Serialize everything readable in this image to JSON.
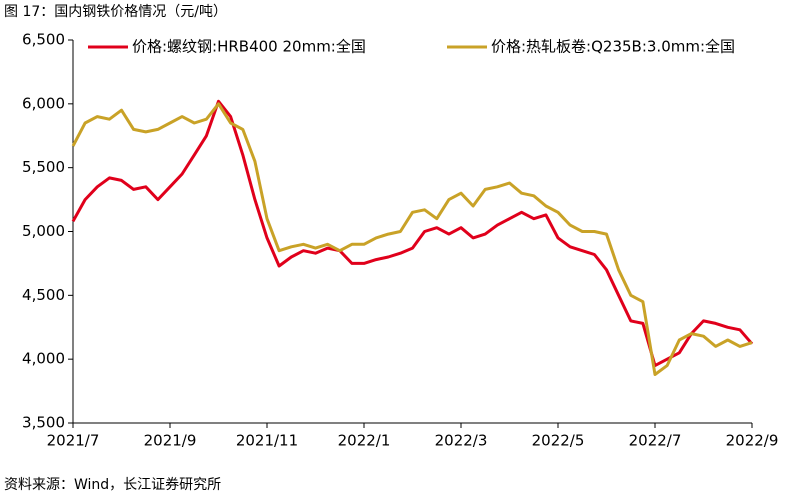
{
  "chart_data": {
    "type": "line",
    "title": "图 17：国内钢铁价格情况（元/吨）",
    "source": "资料来源：Wind，长江证券研究所",
    "categories": [
      "2021/7",
      null,
      null,
      null,
      null,
      null,
      null,
      null,
      "2021/9",
      null,
      null,
      null,
      null,
      null,
      null,
      null,
      "2021/11",
      null,
      null,
      null,
      null,
      null,
      null,
      null,
      "2022/1",
      null,
      null,
      null,
      null,
      null,
      null,
      null,
      "2022/3",
      null,
      null,
      null,
      null,
      null,
      null,
      null,
      "2022/5",
      null,
      null,
      null,
      null,
      null,
      null,
      null,
      "2022/7",
      null,
      null,
      null,
      null,
      null,
      null,
      null,
      "2022/9"
    ],
    "series": [
      {
        "name": "价格:螺纹钢:HRB400 20mm:全国",
        "color": "#e0001b",
        "values": [
          5080,
          5250,
          5350,
          5420,
          5400,
          5330,
          5350,
          5250,
          5350,
          5450,
          5600,
          5750,
          6020,
          5900,
          5600,
          5250,
          4950,
          4730,
          4800,
          4850,
          4830,
          4870,
          4850,
          4750,
          4750,
          4780,
          4800,
          4830,
          4870,
          5000,
          5030,
          4980,
          5030,
          4950,
          4980,
          5050,
          5100,
          5150,
          5100,
          5130,
          4950,
          4880,
          4850,
          4820,
          4700,
          4500,
          4300,
          4280,
          3950,
          4000,
          4050,
          4200,
          4300,
          4280,
          4250,
          4230,
          4120
        ]
      },
      {
        "name": "价格:热轧板卷:Q235B:3.0mm:全国",
        "color": "#c9a227",
        "values": [
          5670,
          5850,
          5900,
          5880,
          5950,
          5800,
          5780,
          5800,
          5850,
          5900,
          5850,
          5880,
          6000,
          5850,
          5800,
          5550,
          5100,
          4850,
          4880,
          4900,
          4870,
          4900,
          4850,
          4900,
          4900,
          4950,
          4980,
          5000,
          5150,
          5170,
          5100,
          5250,
          5300,
          5200,
          5330,
          5350,
          5380,
          5300,
          5280,
          5200,
          5150,
          5050,
          5000,
          5000,
          4980,
          4700,
          4500,
          4450,
          3880,
          3950,
          4150,
          4200,
          4180,
          4100,
          4150,
          4100,
          4130
        ]
      }
    ],
    "ylim": [
      3500,
      6500
    ],
    "yticks": [
      {
        "value": 3500,
        "label": "3,500"
      },
      {
        "value": 4000,
        "label": "4,000"
      },
      {
        "value": 4500,
        "label": "4,500"
      },
      {
        "value": 5000,
        "label": "5,000"
      },
      {
        "value": 5500,
        "label": "5,500"
      },
      {
        "value": 6000,
        "label": "6,000"
      },
      {
        "value": 6500,
        "label": "6,500"
      }
    ],
    "grid": false,
    "legend": "top"
  }
}
